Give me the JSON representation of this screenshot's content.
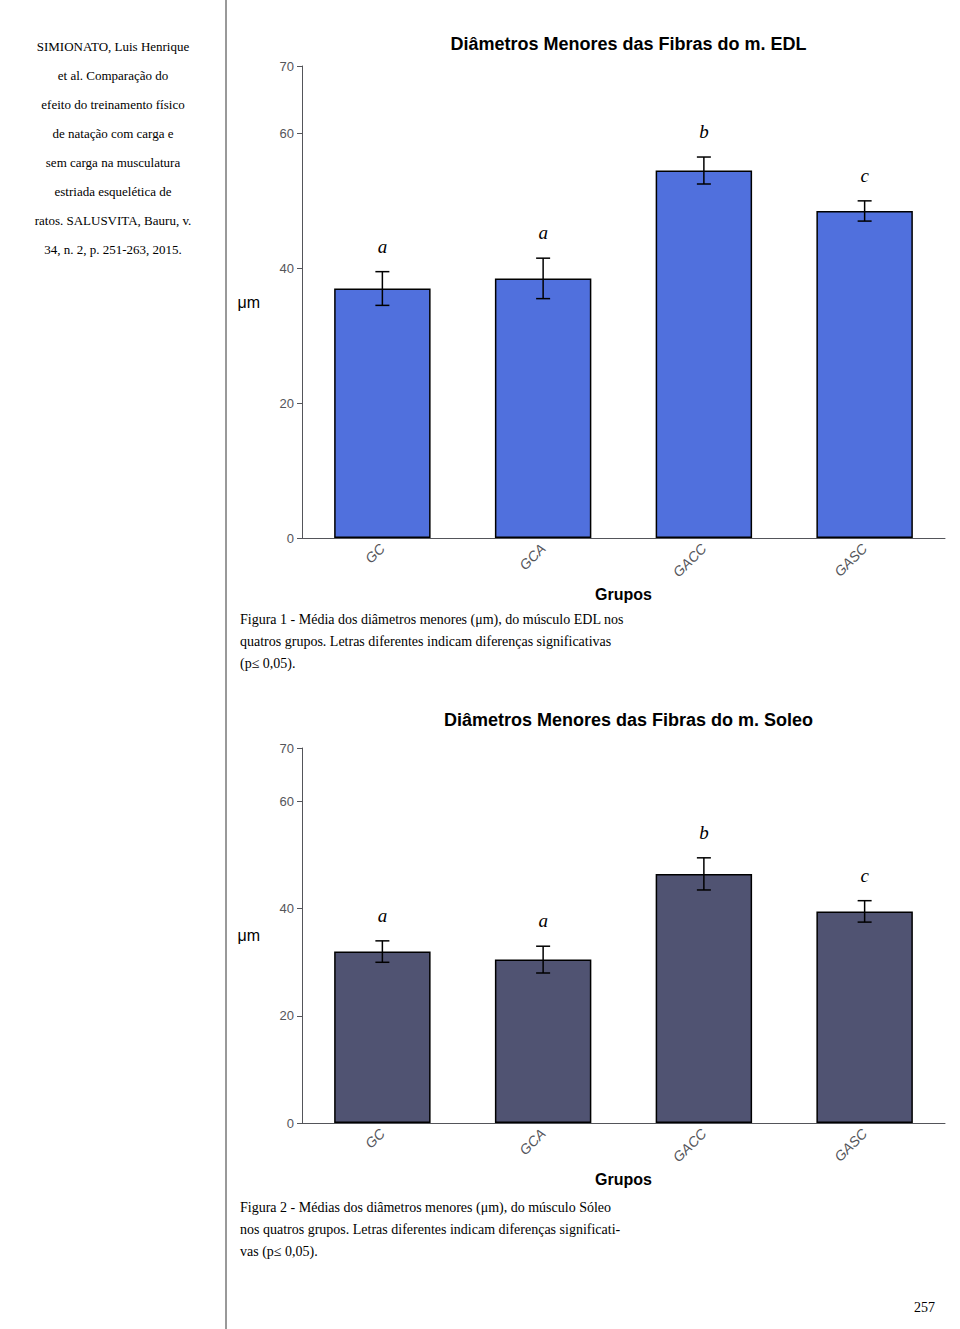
{
  "chart_data": [
    {
      "type": "bar",
      "title": "Diâmetros Menores das Fibras do m. EDL",
      "categories": [
        "GC",
        "GCA",
        "GACC",
        "GASC"
      ],
      "values": [
        37.0,
        38.5,
        54.5,
        48.5
      ],
      "errors": [
        2.5,
        3.0,
        2.0,
        1.5
      ],
      "letters": [
        "a",
        "a",
        "b",
        "c"
      ],
      "xlabel": "Grupos",
      "ylabel": "μm",
      "ylim": [
        0,
        70
      ],
      "yticks": [
        0,
        20,
        40,
        60
      ],
      "grid": false,
      "caption": "Figura 1 - Média dos diâmetros menores (μm), do músculo EDL nos\nquatros grupos. Letras diferentes indicam diferenças significativas\n(p≤ 0,05)."
    },
    {
      "type": "bar",
      "title": "Diâmetros Menores das Fibras do m. Soleo",
      "categories": [
        "GC",
        "GCA",
        "GACC",
        "GASC"
      ],
      "values": [
        32.0,
        30.5,
        46.5,
        39.5
      ],
      "errors": [
        2.0,
        2.5,
        3.0,
        2.0
      ],
      "letters": [
        "a",
        "a",
        "b",
        "c"
      ],
      "xlabel": "Grupos",
      "ylabel": "μm",
      "ylim": [
        0,
        70
      ],
      "yticks": [
        0,
        20,
        40,
        60
      ],
      "grid": false,
      "caption": "Figura 2 - Médias dos diâmetros menores (μm), do músculo Sóleo\nnos quatros grupos. Letras diferentes indicam diferenças significati-\nvas (p≤ 0,05)."
    }
  ],
  "annotations": {
    "sidebar": [
      "SIMIONATO, Luis Henrique",
      "et al. Comparação do",
      "efeito do treinamento físico",
      "de natação com carga e",
      "sem carga na musculatura",
      "estriada esquelética de",
      "ratos. SALUSVITA, Bauru, v.",
      "34, n. 2, p. 251-263, 2015."
    ],
    "page_number": "257"
  }
}
